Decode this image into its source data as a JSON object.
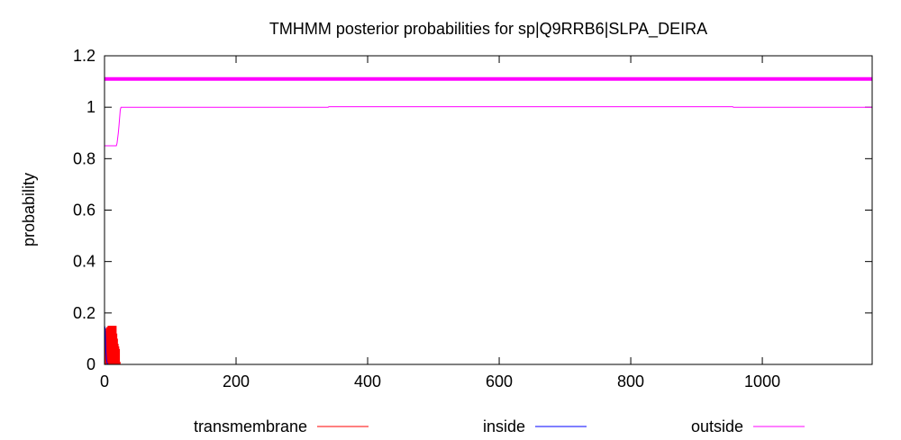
{
  "chart_data": {
    "type": "line",
    "title": "TMHMM posterior probabilities for sp|Q9RRB6|SLPA_DEIRA",
    "xlabel": "",
    "ylabel": "probability",
    "xlim": [
      0,
      1167
    ],
    "ylim": [
      0,
      1.2
    ],
    "xticks": [
      0,
      200,
      400,
      600,
      800,
      1000
    ],
    "yticks": [
      0,
      0.2,
      0.4,
      0.6,
      0.8,
      1,
      1.2
    ],
    "legend_position": "bottom",
    "series": [
      {
        "name": "transmembrane",
        "color": "#ff0000",
        "style": "impulses",
        "x": [
          1,
          2,
          3,
          4,
          5,
          6,
          7,
          8,
          9,
          10,
          11,
          12,
          13,
          14,
          15,
          16,
          17,
          18,
          19,
          20,
          21,
          22,
          23
        ],
        "y": [
          0.01,
          0.13,
          0.14,
          0.145,
          0.145,
          0.15,
          0.15,
          0.15,
          0.15,
          0.15,
          0.15,
          0.15,
          0.15,
          0.15,
          0.15,
          0.15,
          0.15,
          0.12,
          0.1,
          0.08,
          0.07,
          0.06,
          0.01
        ]
      },
      {
        "name": "inside",
        "color": "#0000ff",
        "style": "line",
        "x": [
          0,
          1,
          2,
          3,
          4,
          5,
          6,
          1167
        ],
        "y": [
          0.15,
          0.14,
          0.05,
          0.02,
          0.005,
          0.001,
          0,
          0
        ]
      },
      {
        "name": "outside",
        "color": "#ff00ff",
        "style": "line",
        "x": [
          0,
          18,
          19,
          20,
          21,
          22,
          23,
          24,
          25,
          340,
          341,
          955,
          956,
          1167
        ],
        "y": [
          0.85,
          0.85,
          0.86,
          0.88,
          0.9,
          0.93,
          0.96,
          0.99,
          1.0,
          1.0,
          1.002,
          1.002,
          1.0,
          1.0
        ]
      }
    ],
    "annotation_line": {
      "color": "#ff00ff",
      "y": 1.11,
      "x": [
        0,
        1167
      ]
    }
  }
}
